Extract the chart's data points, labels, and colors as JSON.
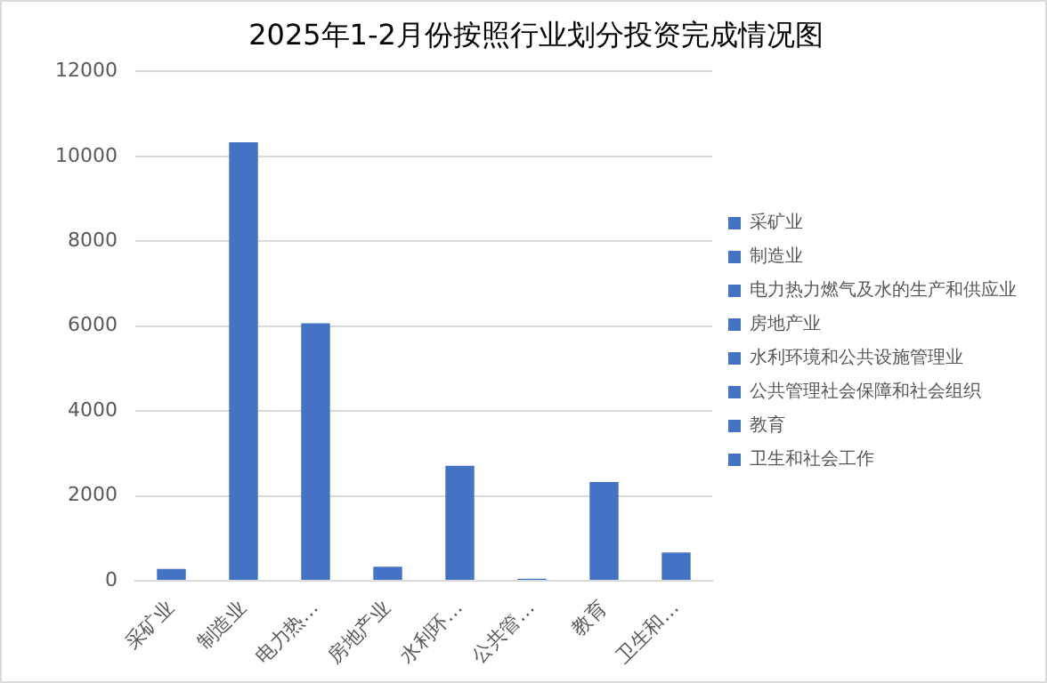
{
  "chart_data": {
    "type": "bar",
    "title": "2025年1-2月份按照行业划分投资完成情况图",
    "categories": [
      "采矿业",
      "制造业",
      "电力热…",
      "房地产业",
      "水利环…",
      "公共管…",
      "教育",
      "卫生和…"
    ],
    "series": [
      {
        "name": "采矿业",
        "color": "#4472c4",
        "values": [
          280,
          null,
          null,
          null,
          null,
          null,
          null,
          null
        ]
      },
      {
        "name": "制造业",
        "color": "#4472c4",
        "values": [
          null,
          10330,
          null,
          null,
          null,
          null,
          null,
          null
        ]
      },
      {
        "name": "电力热力燃气及水的生产和供应业",
        "color": "#4472c4",
        "values": [
          null,
          null,
          6070,
          null,
          null,
          null,
          null,
          null
        ]
      },
      {
        "name": "房地产业",
        "color": "#4472c4",
        "values": [
          null,
          null,
          null,
          330,
          null,
          null,
          null,
          null
        ]
      },
      {
        "name": "水利环境和公共设施管理业",
        "color": "#4472c4",
        "values": [
          null,
          null,
          null,
          null,
          2710,
          null,
          null,
          null
        ]
      },
      {
        "name": "公共管理社会保障和社会组织",
        "color": "#4472c4",
        "values": [
          null,
          null,
          null,
          null,
          null,
          50,
          null,
          null
        ]
      },
      {
        "name": "教育",
        "color": "#4472c4",
        "values": [
          null,
          null,
          null,
          null,
          null,
          null,
          2330,
          null
        ]
      },
      {
        "name": "卫生和社会工作",
        "color": "#4472c4",
        "values": [
          null,
          null,
          null,
          null,
          null,
          null,
          null,
          670
        ]
      }
    ],
    "ylim": [
      0,
      12000
    ],
    "yticks": [
      0,
      2000,
      4000,
      6000,
      8000,
      10000,
      12000
    ],
    "grid": "y",
    "legend": "right"
  }
}
